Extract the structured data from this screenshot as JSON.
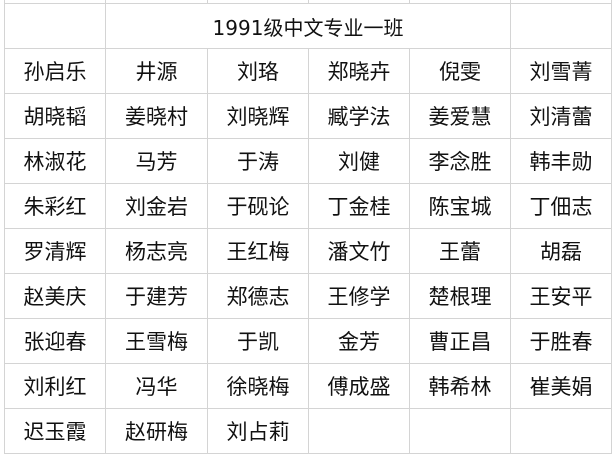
{
  "title": "1991级中文专业一班",
  "rows": [
    [
      "孙启乐",
      "井源",
      "刘珞",
      "郑晓卉",
      "倪雯",
      "刘雪菁"
    ],
    [
      "胡晓韬",
      "姜晓村",
      "刘晓辉",
      "臧学法",
      "姜爱慧",
      "刘清蕾"
    ],
    [
      "林淑花",
      "马芳",
      "于涛",
      "刘健",
      "李念胜",
      "韩丰勋"
    ],
    [
      "朱彩红",
      "刘金岩",
      "于砚论",
      "丁金桂",
      "陈宝城",
      "丁佃志"
    ],
    [
      "罗清辉",
      "杨志亮",
      "王红梅",
      "潘文竹",
      "王蕾",
      "胡磊"
    ],
    [
      "赵美庆",
      "于建芳",
      "郑德志",
      "王修学",
      "楚根理",
      "王安平"
    ],
    [
      "张迎春",
      "王雪梅",
      "于凯",
      "金芳",
      "曹正昌",
      "于胜春"
    ],
    [
      "刘利红",
      "冯华",
      "徐晓梅",
      "傅成盛",
      "韩希林",
      "崔美娟"
    ],
    [
      "迟玉霞",
      "赵研梅",
      "刘占莉",
      "",
      "",
      ""
    ]
  ]
}
